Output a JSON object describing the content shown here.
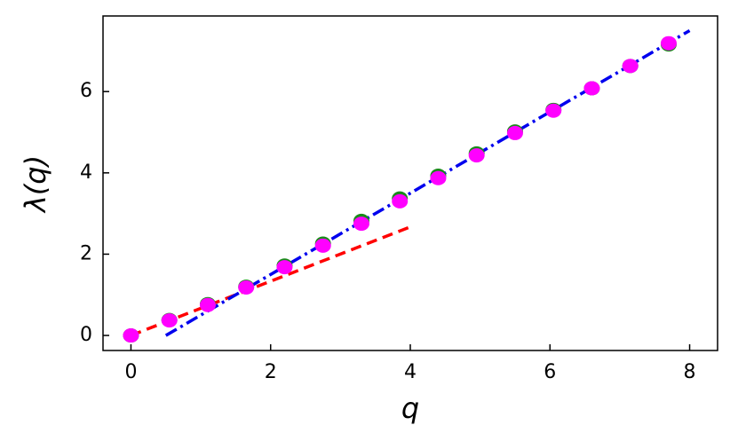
{
  "chart_data": {
    "type": "scatter",
    "xlabel": "q",
    "ylabel": "λ(q)",
    "x": [
      0,
      0.55,
      1.1,
      1.65,
      2.2,
      2.75,
      3.3,
      3.85,
      4.4,
      4.95,
      5.5,
      6.05,
      6.6,
      7.15,
      7.7
    ],
    "series": [
      {
        "color": "#1a8a1a",
        "values": [
          0,
          0.38,
          0.77,
          1.2,
          1.72,
          2.26,
          2.82,
          3.37,
          3.93,
          4.48,
          5.02,
          5.55,
          6.08,
          6.63,
          7.16
        ]
      },
      {
        "color": "#ff00ff",
        "values": [
          0,
          0.37,
          0.75,
          1.18,
          1.68,
          2.21,
          2.75,
          3.3,
          3.87,
          4.43,
          4.98,
          5.53,
          6.08,
          6.63,
          7.19
        ]
      }
    ],
    "lines": [
      {
        "color": "#ff0000",
        "dash": "12 7",
        "x": [
          0,
          4
        ],
        "values": [
          0,
          2.67
        ]
      },
      {
        "color": "#0000ee",
        "dash": "14 5 3 5",
        "x": [
          0.5,
          8
        ],
        "values": [
          0,
          7.5
        ]
      }
    ],
    "xlim": [
      -0.4,
      8.4
    ],
    "ylim": [
      -0.37,
      7.86
    ],
    "xticks": [
      0,
      2,
      4,
      6,
      8
    ],
    "yticks": [
      0,
      2,
      4,
      6
    ]
  }
}
